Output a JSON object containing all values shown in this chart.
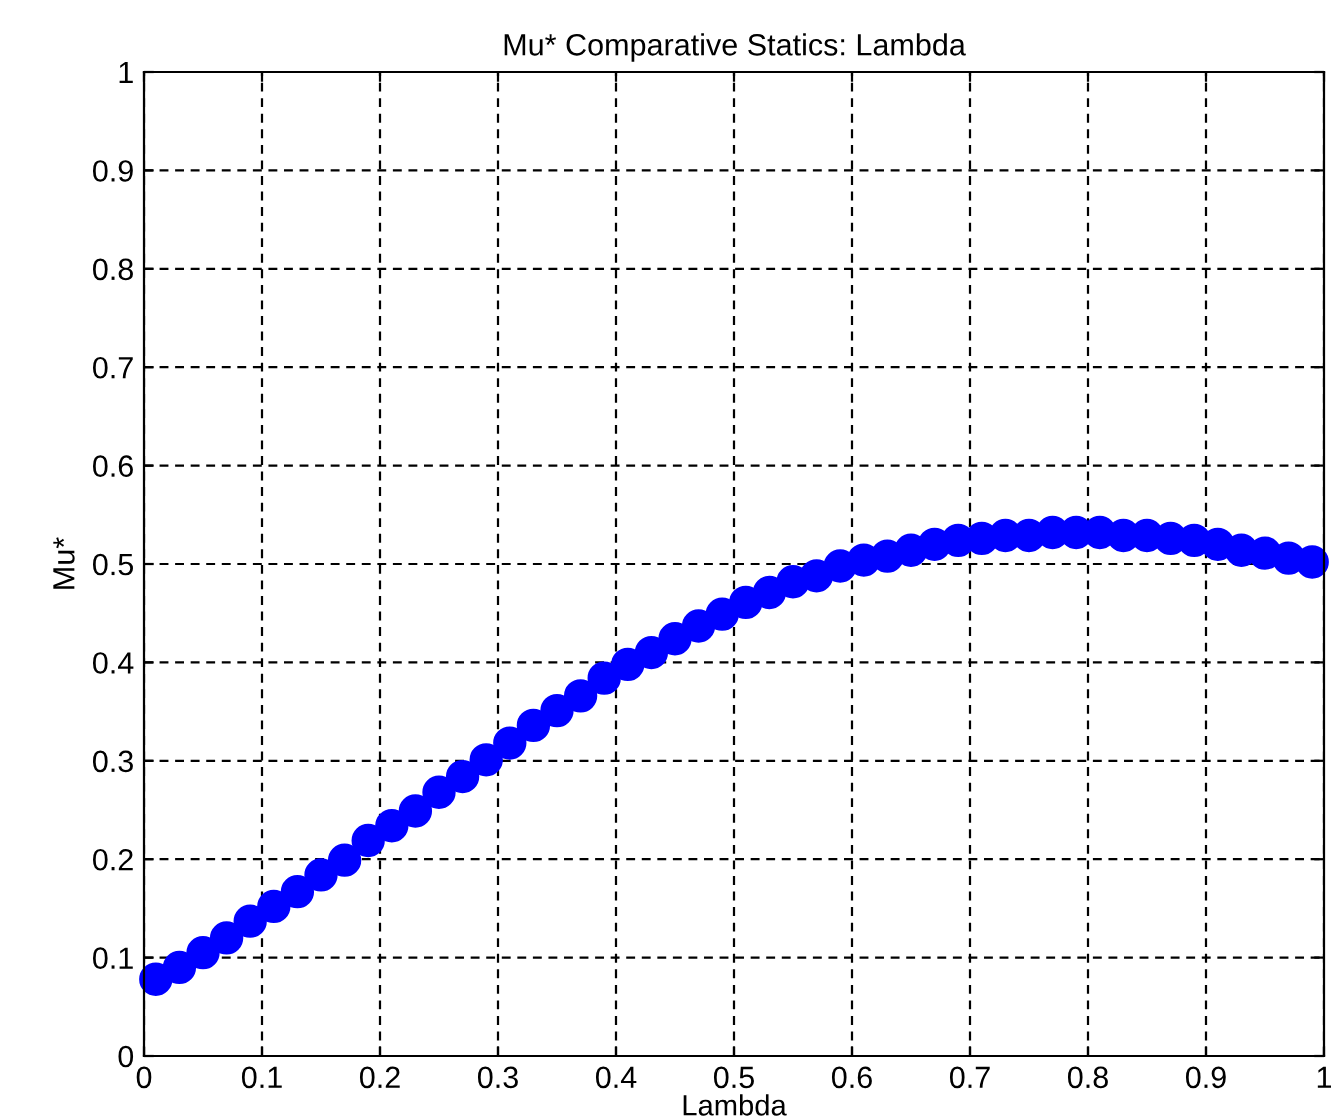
{
  "chart_data": {
    "type": "scatter",
    "title": "Mu* Comparative Statics: Lambda",
    "xlabel": "Lambda",
    "ylabel": "Mu*",
    "x": [
      0.01,
      0.03,
      0.05,
      0.07,
      0.09,
      0.11,
      0.13,
      0.15,
      0.17,
      0.19,
      0.21,
      0.23,
      0.25,
      0.27,
      0.29,
      0.31,
      0.33,
      0.35,
      0.37,
      0.39,
      0.41,
      0.43,
      0.45,
      0.47,
      0.49,
      0.51,
      0.53,
      0.55,
      0.57,
      0.59,
      0.61,
      0.63,
      0.65,
      0.67,
      0.69,
      0.71,
      0.73,
      0.75,
      0.77,
      0.79,
      0.81,
      0.83,
      0.85,
      0.87,
      0.89,
      0.91,
      0.93,
      0.95,
      0.97,
      0.99
    ],
    "series": [
      {
        "color": "#0000ff",
        "values": [
          0.078,
          0.09,
          0.105,
          0.12,
          0.137,
          0.152,
          0.167,
          0.184,
          0.199,
          0.219,
          0.234,
          0.249,
          0.268,
          0.284,
          0.301,
          0.318,
          0.336,
          0.351,
          0.366,
          0.384,
          0.398,
          0.41,
          0.424,
          0.437,
          0.449,
          0.461,
          0.471,
          0.482,
          0.488,
          0.498,
          0.504,
          0.508,
          0.514,
          0.52,
          0.524,
          0.526,
          0.529,
          0.529,
          0.532,
          0.532,
          0.532,
          0.529,
          0.529,
          0.526,
          0.524,
          0.52,
          0.514,
          0.511,
          0.506,
          0.502
        ]
      }
    ],
    "xlim": [
      0,
      1
    ],
    "ylim": [
      0,
      1
    ],
    "xticks": [
      0,
      0.1,
      0.2,
      0.3,
      0.4,
      0.5,
      0.6,
      0.7,
      0.8,
      0.9,
      1
    ],
    "yticks": [
      0,
      0.1,
      0.2,
      0.3,
      0.4,
      0.5,
      0.6,
      0.7,
      0.8,
      0.9,
      1
    ],
    "grid": true,
    "marker": "circle"
  }
}
